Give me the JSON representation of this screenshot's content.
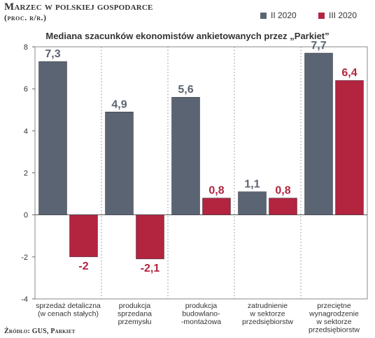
{
  "header": {
    "title": "Marzec w polskiej gospodarce",
    "subtitle": "(proc. r/r.)",
    "chart_title": "Mediana szacunków ekonomistów ankietowanych przez „Parkiet”",
    "source": "Źródło: GUS, Parkiet"
  },
  "colors": {
    "ii_2020": "#5b6472",
    "iii_2020": "#b3243f",
    "value_ii": "#5b6472",
    "value_iii": "#b3243f"
  },
  "chart_data": {
    "type": "bar",
    "categories": [
      [
        "sprzedaż detaliczna",
        "(w cenach stałych)"
      ],
      [
        "produkcja",
        "sprzedana",
        "przemysłu"
      ],
      [
        "produkcja",
        "budowlano-",
        "-montażowa"
      ],
      [
        "zatrudnienie",
        "w sektorze",
        "przedsiębiorstw"
      ],
      [
        "przeciętne",
        "wynagrodzenie",
        "w sektorze",
        "przedsiębiorstw"
      ]
    ],
    "series": [
      {
        "name": "II 2020",
        "values": [
          7.3,
          4.9,
          5.6,
          1.1,
          7.7
        ],
        "labels": [
          "7,3",
          "4,9",
          "5,6",
          "1,1",
          "7,7"
        ]
      },
      {
        "name": "III 2020",
        "values": [
          -2,
          -2.1,
          0.8,
          0.8,
          6.4
        ],
        "labels": [
          "-2",
          "-2,1",
          "0,8",
          "0,8",
          "6,4"
        ]
      }
    ],
    "ylim": [
      -4,
      8
    ],
    "yticks": [
      -4,
      -2,
      0,
      2,
      4,
      6,
      8
    ],
    "ytick_labels": [
      "-4",
      "-2",
      "0",
      "2",
      "4",
      "6",
      "8"
    ],
    "legend": "top-right",
    "grid": false
  }
}
